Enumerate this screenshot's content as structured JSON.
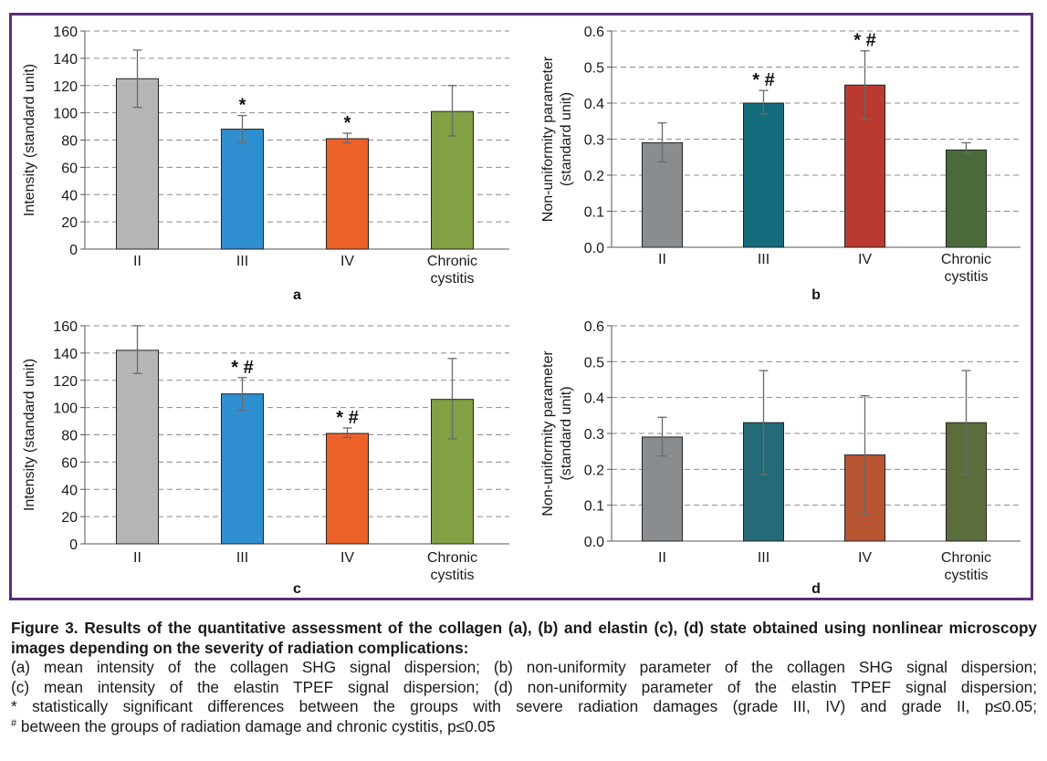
{
  "panels": [
    {
      "id": "a",
      "letter": "a",
      "ylabel_lines": [
        "Intensity (standard unit)"
      ],
      "yticks": [
        0,
        20,
        40,
        60,
        80,
        100,
        120,
        140,
        160
      ],
      "ymax": 160,
      "decimals": 0,
      "categories": [
        [
          "II"
        ],
        [
          "III"
        ],
        [
          "IV"
        ],
        [
          "Chronic",
          "cystitis"
        ]
      ],
      "values": [
        125,
        88,
        81,
        101
      ],
      "err_low": [
        104,
        78,
        78,
        83
      ],
      "err_high": [
        146,
        98,
        85,
        120
      ],
      "markers": [
        "",
        "*",
        "*",
        ""
      ],
      "colors": [
        "#b5b5b5",
        "#2f8fd0",
        "#ec6128",
        "#82a044"
      ]
    },
    {
      "id": "b",
      "letter": "b",
      "ylabel_lines": [
        "Non-uniformity parameter",
        "(standard unit)"
      ],
      "yticks": [
        0,
        0.1,
        0.2,
        0.3,
        0.4,
        0.5,
        0.6
      ],
      "ymax": 0.6,
      "decimals": 1,
      "categories": [
        [
          "II"
        ],
        [
          "III"
        ],
        [
          "IV"
        ],
        [
          "Chronic",
          "cystitis"
        ]
      ],
      "values": [
        0.29,
        0.4,
        0.45,
        0.27
      ],
      "err_low": [
        0.237,
        0.37,
        0.355,
        0.26
      ],
      "err_high": [
        0.345,
        0.435,
        0.545,
        0.29
      ],
      "markers": [
        "",
        "* #",
        "* #",
        ""
      ],
      "colors": [
        "#8a8d90",
        "#146b7c",
        "#bb3a30",
        "#4a6b39"
      ]
    },
    {
      "id": "c",
      "letter": "c",
      "ylabel_lines": [
        "Intensity (standard unit)"
      ],
      "yticks": [
        0,
        20,
        40,
        60,
        80,
        100,
        120,
        140,
        160
      ],
      "ymax": 160,
      "decimals": 0,
      "categories": [
        [
          "II"
        ],
        [
          "III"
        ],
        [
          "IV"
        ],
        [
          "Chronic",
          "cystitis"
        ]
      ],
      "values": [
        142,
        110,
        81,
        106
      ],
      "err_low": [
        125,
        98,
        78,
        77
      ],
      "err_high": [
        160,
        122,
        85,
        136
      ],
      "markers": [
        "",
        "* #",
        "* #",
        ""
      ],
      "colors": [
        "#b5b5b5",
        "#2f8fd0",
        "#ec6128",
        "#82a044"
      ]
    },
    {
      "id": "d",
      "letter": "d",
      "ylabel_lines": [
        "Non-uniformity parameter",
        "(standard unit)"
      ],
      "yticks": [
        0,
        0.1,
        0.2,
        0.3,
        0.4,
        0.5,
        0.6
      ],
      "ymax": 0.6,
      "decimals": 1,
      "categories": [
        [
          "II"
        ],
        [
          "III"
        ],
        [
          "IV"
        ],
        [
          "Chronic",
          "cystitis"
        ]
      ],
      "values": [
        0.29,
        0.33,
        0.24,
        0.33
      ],
      "err_low": [
        0.237,
        0.185,
        0.075,
        0.185
      ],
      "err_high": [
        0.345,
        0.475,
        0.405,
        0.475
      ],
      "markers": [
        "",
        "",
        "",
        ""
      ],
      "colors": [
        "#8a8d90",
        "#246a78",
        "#b75432",
        "#5a6d3b"
      ]
    }
  ],
  "chart_data": [
    {
      "panel": "a",
      "type": "bar",
      "categories": [
        "II",
        "III",
        "IV",
        "Chronic cystitis"
      ],
      "values": [
        125,
        88,
        81,
        101
      ],
      "error_bars": [
        [
          104,
          146
        ],
        [
          78,
          98
        ],
        [
          78,
          85
        ],
        [
          83,
          120
        ]
      ],
      "significance_markers": [
        "",
        "*",
        "*",
        ""
      ],
      "xlabel": "a",
      "ylabel": "Intensity (standard unit)",
      "ylim": [
        0,
        160
      ],
      "grid": "horizontal dashed"
    },
    {
      "panel": "b",
      "type": "bar",
      "categories": [
        "II",
        "III",
        "IV",
        "Chronic cystitis"
      ],
      "values": [
        0.29,
        0.4,
        0.45,
        0.27
      ],
      "error_bars": [
        [
          0.237,
          0.345
        ],
        [
          0.37,
          0.435
        ],
        [
          0.355,
          0.545
        ],
        [
          0.26,
          0.29
        ]
      ],
      "significance_markers": [
        "",
        "* #",
        "* #",
        ""
      ],
      "xlabel": "b",
      "ylabel": "Non-uniformity parameter (standard unit)",
      "ylim": [
        0,
        0.6
      ],
      "grid": "horizontal dashed"
    },
    {
      "panel": "c",
      "type": "bar",
      "categories": [
        "II",
        "III",
        "IV",
        "Chronic cystitis"
      ],
      "values": [
        142,
        110,
        81,
        106
      ],
      "error_bars": [
        [
          125,
          160
        ],
        [
          98,
          122
        ],
        [
          78,
          85
        ],
        [
          77,
          136
        ]
      ],
      "significance_markers": [
        "",
        "* #",
        "* #",
        ""
      ],
      "xlabel": "c",
      "ylabel": "Intensity (standard unit)",
      "ylim": [
        0,
        160
      ],
      "grid": "horizontal dashed"
    },
    {
      "panel": "d",
      "type": "bar",
      "categories": [
        "II",
        "III",
        "IV",
        "Chronic cystitis"
      ],
      "values": [
        0.29,
        0.33,
        0.24,
        0.33
      ],
      "error_bars": [
        [
          0.237,
          0.345
        ],
        [
          0.185,
          0.475
        ],
        [
          0.075,
          0.405
        ],
        [
          0.185,
          0.475
        ]
      ],
      "significance_markers": [
        "",
        "",
        "",
        ""
      ],
      "xlabel": "d",
      "ylabel": "Non-uniformity parameter (standard unit)",
      "ylim": [
        0,
        0.6
      ],
      "grid": "horizontal dashed"
    }
  ],
  "caption": {
    "title": "Figure 3. Results of the quantitative assessment of the collagen (a), (b) and elastin (c), (d) state obtained using nonlinear microscopy images depending on the severity of radiation complications:",
    "line1": "(a) mean intensity of the collagen SHG signal dispersion; (b) non-uniformity parameter of the collagen SHG signal dispersion;",
    "line2": "(c) mean intensity of the elastin TPEF signal dispersion; (d) non-uniformity parameter of the elastin TPEF signal dispersion;",
    "line3": "* statistically significant differences between the groups with severe radiation damages (grade III, IV) and grade II, p≤0.05;",
    "line4_sup": "#",
    "line4": " between the groups of radiation damage and chronic cystitis, p≤0.05"
  }
}
